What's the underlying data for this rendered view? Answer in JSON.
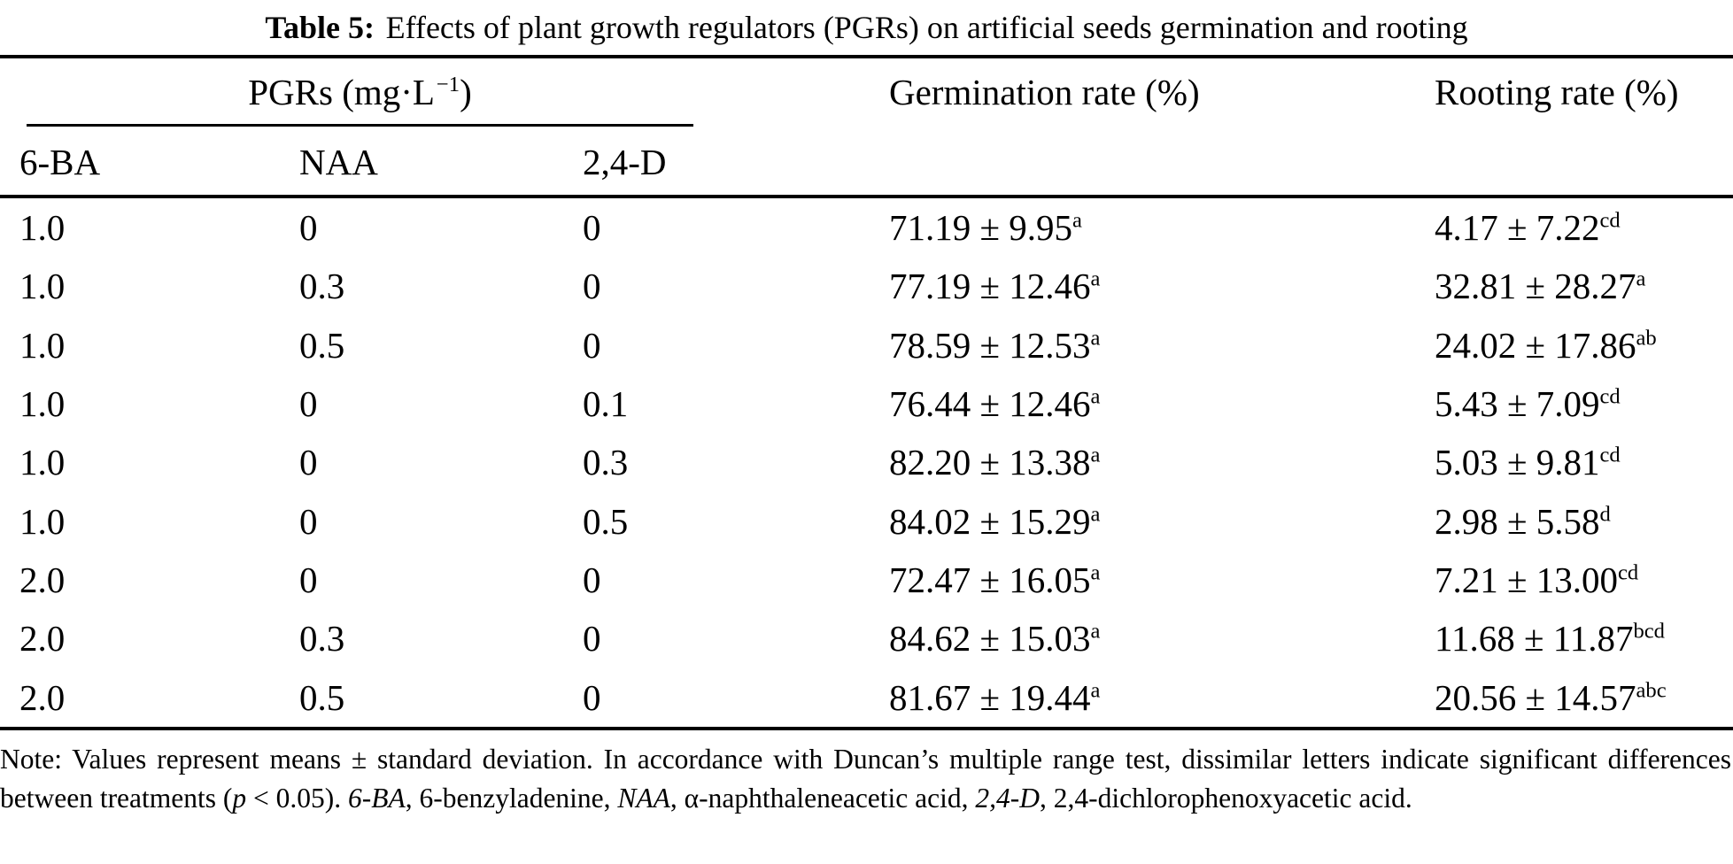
{
  "title": {
    "label": "Table 5:",
    "text": "Effects of plant growth regulators (PGRs) on artificial seeds germination and rooting"
  },
  "columns": {
    "pgr_group_prefix": "PGRs (mg·L",
    "pgr_group_sup": "−1",
    "pgr_group_suffix": ")",
    "germination": "Germination rate (%)",
    "rooting": "Rooting rate (%)",
    "sub": [
      "6-BA",
      "NAA",
      "2,4-D"
    ]
  },
  "rows": [
    {
      "ba": "1.0",
      "naa": "0",
      "d24": "0",
      "germ": "71.19 ± 9.95",
      "germ_sup": "a",
      "root": "4.17 ± 7.22",
      "root_sup": "cd"
    },
    {
      "ba": "1.0",
      "naa": "0.3",
      "d24": "0",
      "germ": "77.19 ± 12.46",
      "germ_sup": "a",
      "root": "32.81 ± 28.27",
      "root_sup": "a"
    },
    {
      "ba": "1.0",
      "naa": "0.5",
      "d24": "0",
      "germ": "78.59 ± 12.53",
      "germ_sup": "a",
      "root": "24.02 ± 17.86",
      "root_sup": "ab"
    },
    {
      "ba": "1.0",
      "naa": "0",
      "d24": "0.1",
      "germ": "76.44 ± 12.46",
      "germ_sup": "a",
      "root": "5.43 ± 7.09",
      "root_sup": "cd"
    },
    {
      "ba": "1.0",
      "naa": "0",
      "d24": "0.3",
      "germ": "82.20 ± 13.38",
      "germ_sup": "a",
      "root": "5.03 ± 9.81",
      "root_sup": "cd"
    },
    {
      "ba": "1.0",
      "naa": "0",
      "d24": "0.5",
      "germ": "84.02 ± 15.29",
      "germ_sup": "a",
      "root": "2.98 ± 5.58",
      "root_sup": "d"
    },
    {
      "ba": "2.0",
      "naa": "0",
      "d24": "0",
      "germ": "72.47 ± 16.05",
      "germ_sup": "a",
      "root": "7.21 ± 13.00",
      "root_sup": "cd"
    },
    {
      "ba": "2.0",
      "naa": "0.3",
      "d24": "0",
      "germ": "84.62 ± 15.03",
      "germ_sup": "a",
      "root": "11.68 ± 11.87",
      "root_sup": "bcd"
    },
    {
      "ba": "2.0",
      "naa": "0.5",
      "d24": "0",
      "germ": "81.67 ± 19.44",
      "germ_sup": "a",
      "root": "20.56 ± 14.57",
      "root_sup": "abc"
    }
  ],
  "note": {
    "part1": "Note: Values represent means ± standard deviation. In accordance with Duncan’s multiple range test, dissimilar letters indicate significant differences between treatments (",
    "p_italic": "p",
    "part2": " < 0.05). ",
    "ba_italic": "6-BA",
    "part3": ", 6-benzyladenine, ",
    "naa_italic": "NAA",
    "part4": ", α-naphthaleneacetic acid, ",
    "d24_italic": "2,4-D",
    "part5": ", 2,4-dichlorophenoxyacetic acid."
  }
}
